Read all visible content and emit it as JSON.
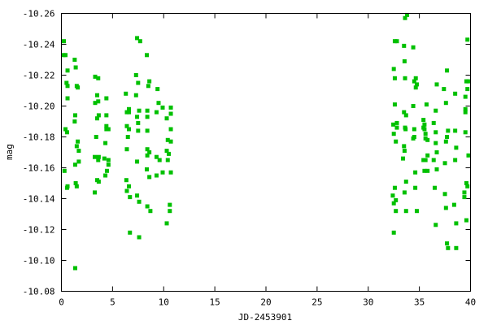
{
  "chart_data": {
    "type": "scatter",
    "title": "",
    "xlabel": "JD-2453901",
    "ylabel": "mag",
    "xlim": [
      0,
      40
    ],
    "ylim": [
      -10.08,
      -10.26
    ],
    "y_inverted": true,
    "grid": false,
    "legend": "none",
    "marker": "square",
    "color": "#00c000",
    "x_ticks": [
      "0",
      "5",
      "10",
      "15",
      "20",
      "25",
      "30",
      "35",
      "40"
    ],
    "y_ticks": [
      "-10.26",
      "-10.24",
      "-10.22",
      "-10.20",
      "-10.18",
      "-10.16",
      "-10.14",
      "-10.12",
      "-10.10",
      "-10.08"
    ],
    "x": [
      0.24,
      0.2,
      0.4,
      1.3,
      1.4,
      0.6,
      0.5,
      0.6,
      1.5,
      1.6,
      0.6,
      1.35,
      1.3,
      0.4,
      0.55,
      1.6,
      1.5,
      1.7,
      1.35,
      1.7,
      0.3,
      0.6,
      0.55,
      1.4,
      1.5,
      1.35,
      3.3,
      3.6,
      3.5,
      4.4,
      3.6,
      3.3,
      3.65,
      4.4,
      3.5,
      4.4,
      4.6,
      4.4,
      3.4,
      4.3,
      3.26,
      3.65,
      3.6,
      4.2,
      4.6,
      4.6,
      4.45,
      4.3,
      3.5,
      3.65,
      3.26,
      7.4,
      7.7,
      8.35,
      7.3,
      7.5,
      8.6,
      8.5,
      9.4,
      6.3,
      7.3,
      9.5,
      6.6,
      6.4,
      6.6,
      7.6,
      8.4,
      7.4,
      8.4,
      9.3,
      9.9,
      10.7,
      10.7,
      10.3,
      6.4,
      6.6,
      7.5,
      7.5,
      8.4,
      6.5,
      10.7,
      10.4,
      10.7,
      10.3,
      10.5,
      10.4,
      6.4,
      8.4,
      8.6,
      8.4,
      9.3,
      9.6,
      7.4,
      8.35,
      9.9,
      10.7,
      9.3,
      8.6,
      6.35,
      6.6,
      6.4,
      6.7,
      7.4,
      7.6,
      8.4,
      8.7,
      10.6,
      10.6,
      10.3,
      6.7,
      7.6,
      33.8,
      33.6,
      32.6,
      32.8,
      33.5,
      34.4,
      39.7,
      33.55,
      32.5,
      37.7,
      32.6,
      33.6,
      34.65,
      34.5,
      34.75,
      34.65,
      36.7,
      37.4,
      39.6,
      39.8,
      39.7,
      38.5,
      39.5,
      32.6,
      34.4,
      35.7,
      37.6,
      33.5,
      33.7,
      36.6,
      39.5,
      39.5,
      35.4,
      32.45,
      32.8,
      32.8,
      33.6,
      33.65,
      34.5,
      35.5,
      35.4,
      35.5,
      36.4,
      37.8,
      38.5,
      32.5,
      35.6,
      34.5,
      34.4,
      36.6,
      37.7,
      39.5,
      32.7,
      35.6,
      35.8,
      36.6,
      37.6,
      33.5,
      33.55,
      38.6,
      39.8,
      33.4,
      35.8,
      35.4,
      36.4,
      36.7,
      35.6,
      37.5,
      35.5,
      35.8,
      36.7,
      34.6,
      38.5,
      33.7,
      32.6,
      33.55,
      34.6,
      36.5,
      37.5,
      39.6,
      39.7,
      32.4,
      32.7,
      39.4,
      39.4,
      32.5,
      32.7,
      33.7,
      34.75,
      37.6,
      38.4,
      39.6,
      36.6,
      38.6,
      32.5,
      37.7,
      37.8,
      38.6
    ],
    "y": [
      -10.242,
      -10.233,
      -10.233,
      -10.23,
      -10.225,
      -10.223,
      -10.215,
      -10.213,
      -10.213,
      -10.212,
      -10.205,
      -10.194,
      -10.19,
      -10.185,
      -10.183,
      -10.177,
      -10.174,
      -10.171,
      -10.162,
      -10.164,
      -10.158,
      -10.148,
      -10.147,
      -10.15,
      -10.148,
      -10.095,
      -10.219,
      -10.218,
      -10.207,
      -10.205,
      -10.203,
      -10.202,
      -10.194,
      -10.194,
      -10.192,
      -10.187,
      -10.185,
      -10.185,
      -10.18,
      -10.176,
      -10.167,
      -10.167,
      -10.165,
      -10.166,
      -10.165,
      -10.162,
      -10.158,
      -10.155,
      -10.152,
      -10.151,
      -10.144,
      -10.244,
      -10.242,
      -10.233,
      -10.22,
      -10.215,
      -10.216,
      -10.213,
      -10.211,
      -10.208,
      -10.207,
      -10.202,
      -10.198,
      -10.196,
      -10.196,
      -10.197,
      -10.197,
      -10.193,
      -10.193,
      -10.196,
      -10.199,
      -10.199,
      -10.195,
      -10.192,
      -10.187,
      -10.185,
      -10.189,
      -10.184,
      -10.184,
      -10.18,
      -10.185,
      -10.178,
      -10.177,
      -10.171,
      -10.169,
      -10.165,
      -10.172,
      -10.172,
      -10.17,
      -10.168,
      -10.167,
      -10.165,
      -10.164,
      -10.159,
      -10.157,
      -10.157,
      -10.155,
      -10.154,
      -10.152,
      -10.148,
      -10.145,
      -10.141,
      -10.142,
      -10.138,
      -10.135,
      -10.132,
      -10.136,
      -10.132,
      -10.124,
      -10.118,
      -10.115,
      -10.259,
      -10.257,
      -10.242,
      -10.242,
      -10.239,
      -10.238,
      -10.243,
      -10.229,
      -10.224,
      -10.223,
      -10.218,
      -10.218,
      -10.218,
      -10.216,
      -10.214,
      -10.212,
      -10.214,
      -10.211,
      -10.216,
      -10.216,
      -10.211,
      -10.208,
      -10.206,
      -10.201,
      -10.2,
      -10.201,
      -10.202,
      -10.196,
      -10.194,
      -10.197,
      -10.198,
      -10.196,
      -10.191,
      -10.188,
      -10.189,
      -10.186,
      -10.186,
      -10.185,
      -10.185,
      -10.188,
      -10.186,
      -10.185,
      -10.189,
      -10.184,
      -10.184,
      -10.182,
      -10.182,
      -10.18,
      -10.179,
      -10.183,
      -10.18,
      -10.183,
      -10.177,
      -10.179,
      -10.178,
      -10.176,
      -10.177,
      -10.174,
      -10.171,
      -10.173,
      -10.168,
      -10.166,
      -10.168,
      -10.165,
      -10.165,
      -10.17,
      -10.165,
      -10.163,
      -10.158,
      -10.158,
      -10.159,
      -10.157,
      -10.165,
      -10.151,
      -10.147,
      -10.144,
      -10.147,
      -10.147,
      -10.143,
      -10.15,
      -10.148,
      -10.142,
      -10.139,
      -10.144,
      -10.141,
      -10.137,
      -10.132,
      -10.132,
      -10.132,
      -10.134,
      -10.136,
      -10.126,
      -10.123,
      -10.124,
      -10.118,
      -10.111,
      -10.108,
      -10.108
    ]
  }
}
